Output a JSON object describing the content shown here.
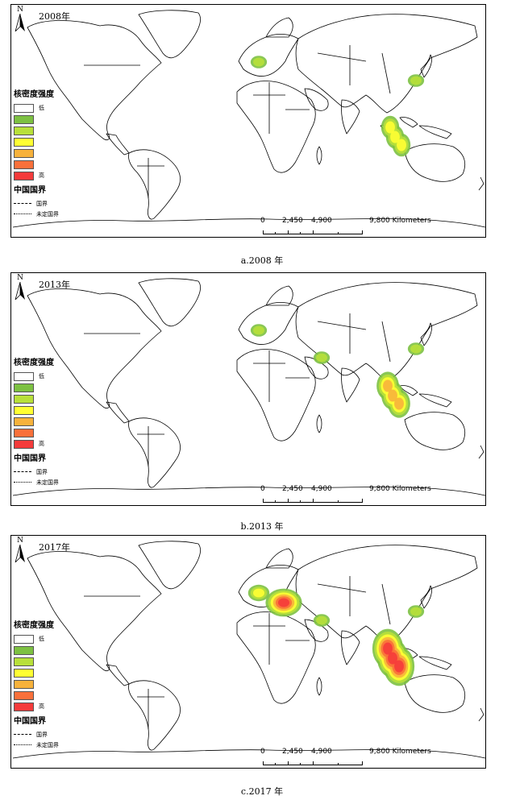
{
  "panels": [
    {
      "year": "2008年",
      "caption": "a.2008 年",
      "hotspots": [
        {
          "region": "western-europe",
          "level": 2
        },
        {
          "region": "korea-japan",
          "level": 2
        },
        {
          "region": "malaysia-indonesia",
          "level": 3
        }
      ]
    },
    {
      "year": "2013年",
      "caption": "b.2013 年",
      "hotspots": [
        {
          "region": "western-europe",
          "level": 2
        },
        {
          "region": "persian-gulf",
          "level": 2
        },
        {
          "region": "korea-japan",
          "level": 2
        },
        {
          "region": "southeast-asia",
          "level": 4
        }
      ]
    },
    {
      "year": "2017年",
      "caption": "c.2017 年",
      "hotspots": [
        {
          "region": "western-europe",
          "level": 3
        },
        {
          "region": "eastern-mediterranean",
          "level": 6
        },
        {
          "region": "persian-gulf",
          "level": 2
        },
        {
          "region": "korea-japan",
          "level": 2
        },
        {
          "region": "southeast-asia",
          "level": 6
        }
      ]
    }
  ],
  "legend": {
    "title": "核密度强度",
    "low_label": "低",
    "high_label": "高",
    "swatch_colors": [
      "#ffffff",
      "#7dc142",
      "#b8e03a",
      "#ffff33",
      "#f7b23b",
      "#f9703a",
      "#f53b3b"
    ],
    "boundary_title": "中国国界",
    "boundary_national": "国界",
    "boundary_undetermined": "未定国界"
  },
  "north_arrow": "N",
  "scale_bar": {
    "labels": [
      "0",
      "2,450",
      "4,900",
      "9,800"
    ],
    "unit": "Kilometers"
  }
}
